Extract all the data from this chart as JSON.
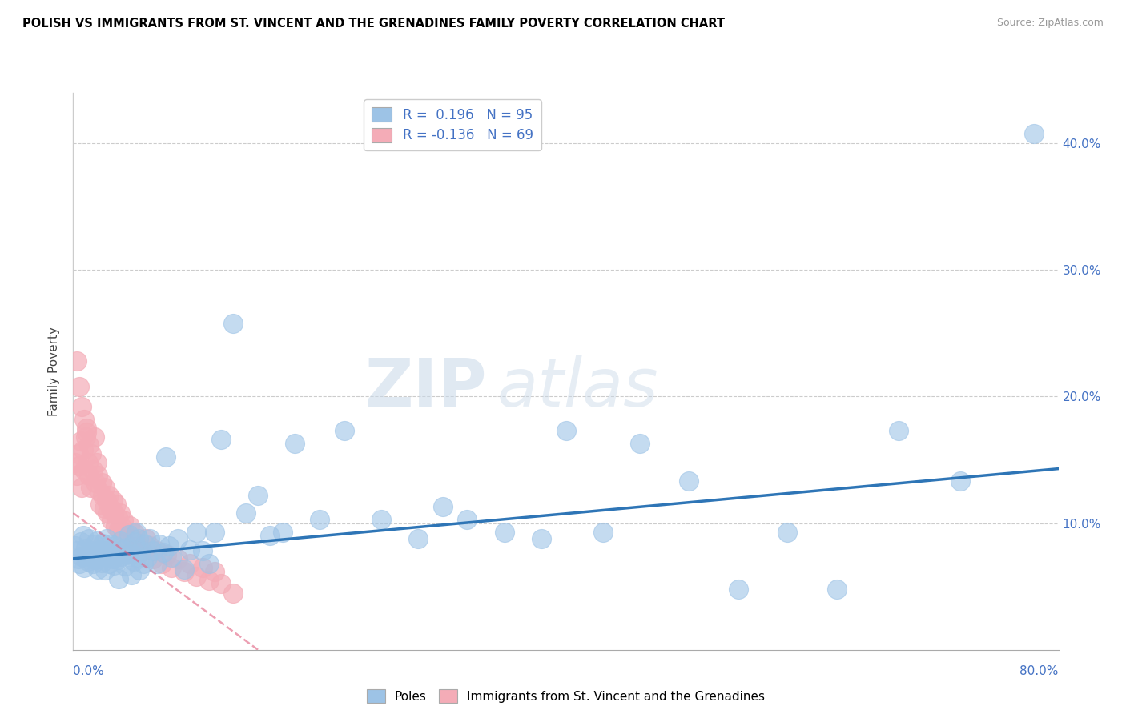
{
  "title": "POLISH VS IMMIGRANTS FROM ST. VINCENT AND THE GRENADINES FAMILY POVERTY CORRELATION CHART",
  "source": "Source: ZipAtlas.com",
  "ylabel": "Family Poverty",
  "x_min": 0.0,
  "x_max": 0.8,
  "y_min": 0.0,
  "y_max": 0.44,
  "yticks": [
    0.1,
    0.2,
    0.3,
    0.4
  ],
  "ytick_labels": [
    "10.0%",
    "20.0%",
    "30.0%",
    "40.0%"
  ],
  "legend_r1": "R =  0.196   N = 95",
  "legend_r2": "R = -0.136   N = 69",
  "blue_color": "#9DC3E6",
  "pink_color": "#F4ACB7",
  "trend_color": "#2E75B6",
  "trend_pink_color": "#E06080",
  "watermark_zip": "ZIP",
  "watermark_atlas": "atlas",
  "blue_scatter_x": [
    0.002,
    0.003,
    0.004,
    0.005,
    0.006,
    0.007,
    0.008,
    0.009,
    0.01,
    0.011,
    0.012,
    0.013,
    0.014,
    0.015,
    0.016,
    0.017,
    0.018,
    0.019,
    0.02,
    0.021,
    0.022,
    0.023,
    0.024,
    0.025,
    0.026,
    0.027,
    0.028,
    0.029,
    0.03,
    0.031,
    0.032,
    0.033,
    0.034,
    0.035,
    0.036,
    0.037,
    0.038,
    0.039,
    0.04,
    0.042,
    0.043,
    0.044,
    0.045,
    0.047,
    0.048,
    0.049,
    0.05,
    0.051,
    0.052,
    0.053,
    0.054,
    0.055,
    0.057,
    0.058,
    0.06,
    0.062,
    0.065,
    0.068,
    0.07,
    0.073,
    0.075,
    0.078,
    0.08,
    0.085,
    0.09,
    0.095,
    0.1,
    0.105,
    0.11,
    0.115,
    0.12,
    0.13,
    0.14,
    0.15,
    0.16,
    0.17,
    0.18,
    0.2,
    0.22,
    0.25,
    0.28,
    0.3,
    0.32,
    0.35,
    0.38,
    0.4,
    0.43,
    0.46,
    0.5,
    0.54,
    0.58,
    0.62,
    0.67,
    0.72,
    0.78
  ],
  "blue_scatter_y": [
    0.082,
    0.078,
    0.072,
    0.068,
    0.085,
    0.074,
    0.09,
    0.065,
    0.08,
    0.075,
    0.07,
    0.088,
    0.077,
    0.073,
    0.068,
    0.083,
    0.071,
    0.086,
    0.064,
    0.079,
    0.074,
    0.069,
    0.084,
    0.078,
    0.063,
    0.088,
    0.073,
    0.068,
    0.083,
    0.077,
    0.072,
    0.067,
    0.082,
    0.076,
    0.071,
    0.056,
    0.086,
    0.074,
    0.079,
    0.066,
    0.081,
    0.075,
    0.091,
    0.059,
    0.076,
    0.07,
    0.085,
    0.093,
    0.073,
    0.088,
    0.063,
    0.078,
    0.068,
    0.083,
    0.073,
    0.088,
    0.078,
    0.068,
    0.083,
    0.077,
    0.152,
    0.082,
    0.073,
    0.088,
    0.064,
    0.079,
    0.093,
    0.078,
    0.068,
    0.093,
    0.166,
    0.258,
    0.108,
    0.122,
    0.09,
    0.093,
    0.163,
    0.103,
    0.173,
    0.103,
    0.088,
    0.113,
    0.103,
    0.093,
    0.088,
    0.173,
    0.093,
    0.163,
    0.133,
    0.048,
    0.093,
    0.048,
    0.173,
    0.133,
    0.408
  ],
  "pink_scatter_x": [
    0.002,
    0.003,
    0.004,
    0.005,
    0.006,
    0.007,
    0.008,
    0.009,
    0.01,
    0.011,
    0.012,
    0.013,
    0.014,
    0.015,
    0.016,
    0.017,
    0.018,
    0.019,
    0.02,
    0.021,
    0.022,
    0.023,
    0.024,
    0.025,
    0.026,
    0.027,
    0.028,
    0.029,
    0.03,
    0.031,
    0.032,
    0.033,
    0.034,
    0.035,
    0.036,
    0.037,
    0.038,
    0.039,
    0.04,
    0.041,
    0.042,
    0.044,
    0.046,
    0.048,
    0.05,
    0.053,
    0.056,
    0.059,
    0.062,
    0.065,
    0.068,
    0.072,
    0.076,
    0.08,
    0.085,
    0.09,
    0.095,
    0.1,
    0.105,
    0.11,
    0.115,
    0.12,
    0.13,
    0.003,
    0.005,
    0.007,
    0.009,
    0.011,
    0.013
  ],
  "pink_scatter_y": [
    0.148,
    0.138,
    0.155,
    0.145,
    0.165,
    0.128,
    0.158,
    0.142,
    0.168,
    0.175,
    0.148,
    0.138,
    0.128,
    0.155,
    0.142,
    0.168,
    0.132,
    0.148,
    0.138,
    0.125,
    0.115,
    0.132,
    0.122,
    0.112,
    0.128,
    0.118,
    0.108,
    0.122,
    0.112,
    0.102,
    0.118,
    0.108,
    0.098,
    0.115,
    0.105,
    0.095,
    0.108,
    0.098,
    0.088,
    0.102,
    0.092,
    0.082,
    0.098,
    0.088,
    0.092,
    0.082,
    0.078,
    0.088,
    0.082,
    0.072,
    0.078,
    0.068,
    0.075,
    0.065,
    0.072,
    0.062,
    0.068,
    0.058,
    0.065,
    0.055,
    0.062,
    0.052,
    0.045,
    0.228,
    0.208,
    0.192,
    0.182,
    0.172,
    0.162
  ],
  "trend_x_start": 0.0,
  "trend_x_end": 0.8,
  "trend_y_start": 0.072,
  "trend_y_end": 0.143,
  "pink_trend_x_start": 0.0,
  "pink_trend_x_end": 0.15,
  "pink_trend_y_start": 0.108,
  "pink_trend_y_end": 0.0
}
